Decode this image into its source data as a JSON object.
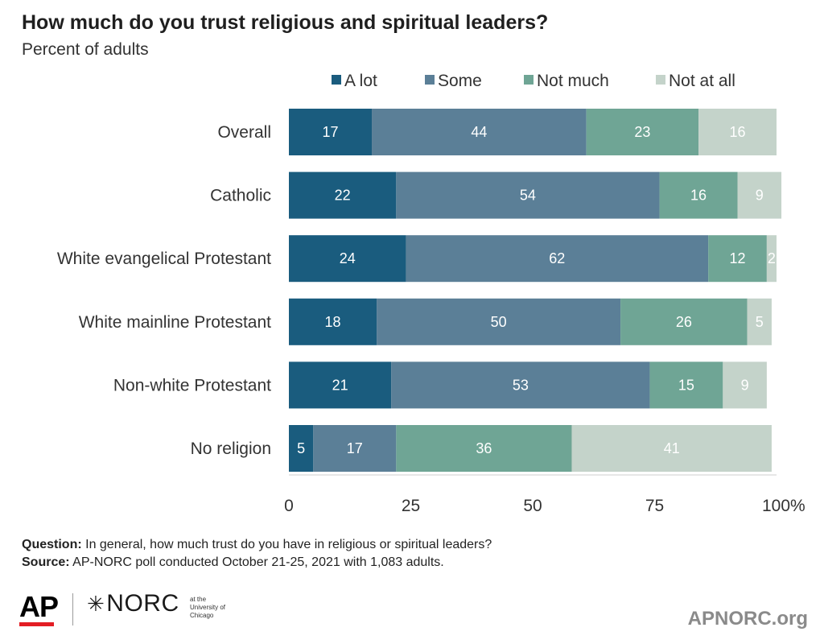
{
  "chart_data": {
    "type": "bar",
    "orientation": "horizontal",
    "stacked": true,
    "title": "How much do you trust religious and spiritual leaders?",
    "subtitle": "Percent of adults",
    "categories": [
      "Overall",
      "Catholic",
      "White evangelical Protestant",
      "White mainline Protestant",
      "Non-white Protestant",
      "No religion"
    ],
    "series": [
      {
        "name": "A lot",
        "color": "#1a5c7e",
        "label_color": "#ffffff",
        "values": [
          17,
          22,
          24,
          18,
          21,
          5
        ]
      },
      {
        "name": "Some",
        "color": "#5b7f97",
        "label_color": "#ffffff",
        "values": [
          44,
          54,
          62,
          50,
          53,
          17
        ]
      },
      {
        "name": "Not much",
        "color": "#6fa595",
        "label_color": "#ffffff",
        "values": [
          23,
          16,
          12,
          26,
          15,
          36
        ]
      },
      {
        "name": "Not at all",
        "color": "#c4d3ca",
        "label_color": "#ffffff",
        "values": [
          16,
          9,
          2,
          5,
          9,
          41
        ]
      }
    ],
    "xlim": [
      0,
      100
    ],
    "xticks": [
      "0",
      "25",
      "50",
      "75",
      "100%"
    ],
    "xtick_values": [
      0,
      25,
      50,
      75,
      100
    ],
    "legend_position": "top",
    "grid": false
  },
  "footer": {
    "question_label": "Question:",
    "question_text": " In general, how much trust do you have in religious or spiritual leaders?",
    "source_label": "Source:",
    "source_text": " AP-NORC poll conducted October 21-25, 2021 with 1,083 adults."
  },
  "logos": {
    "ap": "AP",
    "norc_mark": "✳",
    "norc": "NORC",
    "norc_small": [
      "at the",
      "University of",
      "Chicago"
    ]
  },
  "site_url": "APNORC.org"
}
